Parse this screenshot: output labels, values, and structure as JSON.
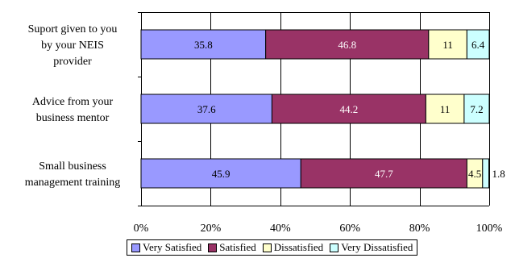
{
  "chart_data": {
    "type": "bar",
    "orientation": "horizontal",
    "stacked": true,
    "percent": true,
    "categories": [
      [
        "Suport given to you",
        "by your NEIS",
        "provider"
      ],
      [
        "Advice from your",
        "business mentor"
      ],
      [
        "Small business",
        "management training"
      ]
    ],
    "series": [
      {
        "name": "Very Satisfied",
        "color": "#9999ff",
        "label_color": "#000000",
        "values": [
          35.8,
          37.6,
          45.9
        ]
      },
      {
        "name": "Satisfied",
        "color": "#993366",
        "label_color": "#ffffff",
        "values": [
          46.8,
          44.2,
          47.7
        ]
      },
      {
        "name": "Dissatisfied",
        "color": "#ffffcc",
        "label_color": "#000000",
        "values": [
          11,
          11,
          4.5
        ]
      },
      {
        "name": "Very Dissatisfied",
        "color": "#ccffff",
        "label_color": "#000000",
        "values": [
          6.4,
          7.2,
          1.8
        ]
      }
    ],
    "x_ticks": [
      "0%",
      "20%",
      "40%",
      "60%",
      "80%",
      "100%"
    ],
    "xlim": [
      0,
      100
    ],
    "grid": true,
    "legend_position": "bottom"
  }
}
